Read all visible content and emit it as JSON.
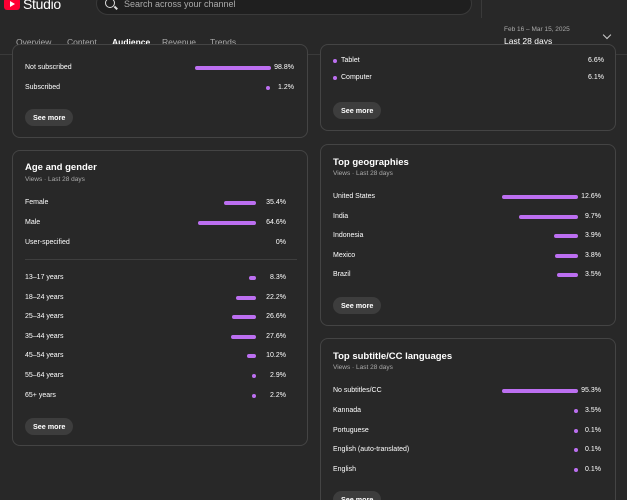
{
  "app": {
    "logo_text": "Studio"
  },
  "search": {
    "placeholder": "Search across your channel"
  },
  "tabs": [
    "Overview",
    "Content",
    "Audience",
    "Revenue",
    "Trends"
  ],
  "date": {
    "range": "Feb 16 – Mar 15, 2025",
    "label": "Last 28 days"
  },
  "subscription": {
    "rows": [
      {
        "label": "Not subscribed",
        "value": "98.8%",
        "pct": 98.8
      },
      {
        "label": "Subscribed",
        "value": "1.2%",
        "pct": 1.2
      }
    ],
    "see_more": "See more"
  },
  "device": {
    "rows": [
      {
        "label": "Tablet",
        "value": "6.6%"
      },
      {
        "label": "Computer",
        "value": "6.1%"
      }
    ],
    "see_more": "See more"
  },
  "age_gender": {
    "title": "Age and gender",
    "subtitle": "Views · Last 28 days",
    "gender": [
      {
        "label": "Female",
        "value": "35.4%",
        "pct": 35.4
      },
      {
        "label": "Male",
        "value": "64.6%",
        "pct": 64.6
      },
      {
        "label": "User-specified",
        "value": "0%",
        "pct": 0
      }
    ],
    "ages": [
      {
        "label": "13–17 years",
        "value": "8.3%",
        "pct": 8.3
      },
      {
        "label": "18–24 years",
        "value": "22.2%",
        "pct": 22.2
      },
      {
        "label": "25–34 years",
        "value": "26.6%",
        "pct": 26.6
      },
      {
        "label": "35–44 years",
        "value": "27.6%",
        "pct": 27.6
      },
      {
        "label": "45–54 years",
        "value": "10.2%",
        "pct": 10.2
      },
      {
        "label": "55–64 years",
        "value": "2.9%",
        "pct": 2.9
      },
      {
        "label": "65+ years",
        "value": "2.2%",
        "pct": 2.2
      }
    ],
    "see_more": "See more"
  },
  "geographies": {
    "title": "Top geographies",
    "subtitle": "Views · Last 28 days",
    "rows": [
      {
        "label": "United States",
        "value": "12.6%",
        "pct": 12.6
      },
      {
        "label": "India",
        "value": "9.7%",
        "pct": 9.7
      },
      {
        "label": "Indonesia",
        "value": "3.9%",
        "pct": 3.9
      },
      {
        "label": "Mexico",
        "value": "3.8%",
        "pct": 3.8
      },
      {
        "label": "Brazil",
        "value": "3.5%",
        "pct": 3.5
      }
    ],
    "see_more": "See more"
  },
  "languages": {
    "title": "Top subtitle/CC languages",
    "subtitle": "Views · Last 28 days",
    "rows": [
      {
        "label": "No subtitles/CC",
        "value": "95.3%",
        "pct": 95.3
      },
      {
        "label": "Kannada",
        "value": "3.5%",
        "pct": 3.5
      },
      {
        "label": "Portuguese",
        "value": "0.1%",
        "pct": 0.1
      },
      {
        "label": "English (auto-translated)",
        "value": "0.1%",
        "pct": 0.1
      },
      {
        "label": "English",
        "value": "0.1%",
        "pct": 0.1
      }
    ],
    "see_more": "See more"
  },
  "colors": {
    "accent": "#bc6ff1",
    "background": "#282828",
    "brand": "#ff0033"
  }
}
